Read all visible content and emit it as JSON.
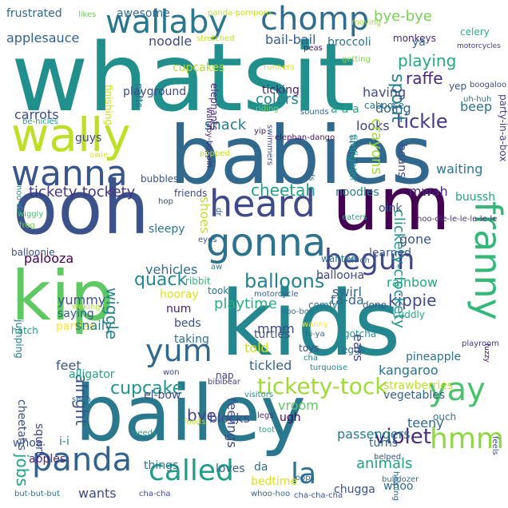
{
  "words": [
    {
      "t": "whatsit",
      "c": "#21908d"
    },
    {
      "t": "babies",
      "c": "#31688e"
    },
    {
      "t": "kids",
      "c": "#24868e"
    },
    {
      "t": "bailey",
      "c": "#2a788e"
    },
    {
      "t": "ooh",
      "c": "#3b528b"
    },
    {
      "t": "kip",
      "c": "#5ec962"
    },
    {
      "t": "um",
      "c": "#440154"
    },
    {
      "t": "wally",
      "c": "#bddf26"
    },
    {
      "t": "wanna",
      "c": "#39568c"
    },
    {
      "t": "heard",
      "c": "#3e4a89"
    },
    {
      "t": "gonna",
      "c": "#2c728e"
    },
    {
      "t": "wallaby",
      "c": "#2a788e"
    },
    {
      "t": "chomp",
      "c": "#2f6c8e"
    },
    {
      "t": "franny",
      "c": "#35b779"
    },
    {
      "t": "yay",
      "c": "#4ac16d"
    },
    {
      "t": "hmm",
      "c": "#90d743"
    },
    {
      "t": "begun",
      "c": "#3e4989"
    },
    {
      "t": "yum",
      "c": "#31688e"
    },
    {
      "t": "panda",
      "c": "#33638d"
    },
    {
      "t": "called",
      "c": "#1f9e89"
    },
    {
      "t": "la",
      "c": "#2c728e"
    },
    {
      "t": "tickety-tock",
      "c": "#a0da39"
    },
    {
      "t": "violet",
      "c": "#472d7b"
    },
    {
      "t": "cupcake",
      "c": "#1f958b"
    },
    {
      "t": "tickle",
      "c": "#443983"
    },
    {
      "t": "balloons",
      "c": "#26828e"
    },
    {
      "t": "cheetah",
      "c": "#1fa187"
    },
    {
      "t": "quack",
      "c": "#23898e"
    },
    {
      "t": "kippie",
      "c": "#3e4a89"
    },
    {
      "t": "playing",
      "c": "#22a884"
    },
    {
      "t": "spout",
      "c": "#277f8e"
    },
    {
      "t": "wiggle",
      "c": "#24868e"
    },
    {
      "t": "clickety-clockety",
      "c": "#21918c"
    },
    {
      "t": "snack",
      "c": "#2a788e"
    },
    {
      "t": "alright",
      "c": "#3b528b"
    },
    {
      "t": "bye",
      "c": "#414487"
    },
    {
      "t": "tickety-tockety",
      "c": "#453781"
    },
    {
      "t": "jobs",
      "c": "#20a386"
    },
    {
      "t": "animals",
      "c": "#1fa187"
    },
    {
      "t": "yummy",
      "c": "#3a548c"
    },
    {
      "t": "colors",
      "c": "#25858e"
    },
    {
      "t": "raffe",
      "c": "#482878"
    },
    {
      "t": "playtime",
      "c": "#29af7f"
    },
    {
      "t": "mmm",
      "c": "#3e4989"
    },
    {
      "t": "frustrated",
      "c": "#31688e"
    },
    {
      "t": "likes",
      "c": "#6ece58"
    },
    {
      "t": "awesome",
      "c": "#31688e"
    },
    {
      "t": "bye-bye",
      "c": "#7ad151"
    },
    {
      "t": "panda-pompom",
      "c": "#bddf26"
    },
    {
      "t": "moving",
      "c": "#9fda3a"
    },
    {
      "t": "monkeys",
      "c": "#482576"
    },
    {
      "t": "celery",
      "c": "#29af7f"
    },
    {
      "t": "motorcycles",
      "c": "#46337e"
    },
    {
      "t": "applesauce",
      "c": "#33638d"
    },
    {
      "t": "bail-bail",
      "c": "#365c8d"
    },
    {
      "t": "broccoli",
      "c": "#2c728e"
    },
    {
      "t": "ya",
      "c": "#31688e"
    },
    {
      "t": "noodle",
      "c": "#3f4788"
    },
    {
      "t": "stretched",
      "c": "#bddf26"
    },
    {
      "t": "peas",
      "c": "#471365"
    },
    {
      "t": "getting",
      "c": "#84d44b"
    },
    {
      "t": "yep",
      "c": "#3b528b"
    },
    {
      "t": "boogaloo",
      "c": "#3e4989"
    },
    {
      "t": "cupcakes",
      "c": "#b5de2b"
    },
    {
      "t": "runners",
      "c": "#dde318"
    },
    {
      "t": "uh-huh",
      "c": "#2c728e"
    },
    {
      "t": "ticking",
      "c": "#482173"
    },
    {
      "t": "having",
      "c": "#3e4a89"
    },
    {
      "t": "caboose",
      "c": "#2a788e"
    },
    {
      "t": "party-in-a-box",
      "c": "#424086"
    },
    {
      "t": "carrots",
      "c": "#3e4989"
    },
    {
      "t": "riding",
      "c": "#7ad151"
    },
    {
      "t": "a-a-a",
      "c": "#22a884"
    },
    {
      "t": "doing",
      "c": "#33638d"
    },
    {
      "t": "beep",
      "c": "#2d708e"
    },
    {
      "t": "sounds",
      "c": "#31688e"
    },
    {
      "t": "yip",
      "c": "#481b6d"
    },
    {
      "t": "be-hicles",
      "c": "#1f9e89"
    },
    {
      "t": "looks",
      "c": "#414487"
    },
    {
      "t": "crayons",
      "c": "#9fda3a"
    },
    {
      "t": "guys",
      "c": "#3e4a89"
    },
    {
      "t": "elephan-dango",
      "c": "#471365"
    },
    {
      "t": "i-i-i",
      "c": "#46337e"
    },
    {
      "t": "firefighter",
      "c": "#1f958b"
    },
    {
      "t": "owie",
      "c": "#d8e219"
    },
    {
      "t": "beans",
      "c": "#3e4a89"
    },
    {
      "t": "waiting",
      "c": "#2a788e"
    },
    {
      "t": "bubbles",
      "c": "#3b528b"
    },
    {
      "t": "friends",
      "c": "#3e4989"
    },
    {
      "t": "noodles",
      "c": "#287c8e"
    },
    {
      "t": "mwah",
      "c": "#482878"
    },
    {
      "t": "buussh",
      "c": "#1fa187"
    },
    {
      "t": "noo-dle",
      "c": "#21918c"
    },
    {
      "t": "hop",
      "c": "#3e4989"
    },
    {
      "t": "oink",
      "c": "#39568c"
    },
    {
      "t": "wiggly",
      "c": "#4ac16d"
    },
    {
      "t": "frog",
      "c": "#7ad151"
    },
    {
      "t": "sleepy",
      "c": "#2a788e"
    },
    {
      "t": "shoes",
      "c": "#c2df23"
    },
    {
      "t": "dr",
      "c": "#31688e"
    },
    {
      "t": "eaters",
      "c": "#22a884"
    },
    {
      "t": "noo-dle-le-le-le-le-le",
      "c": "#472d7b"
    },
    {
      "t": "eyes",
      "c": "#3b528b"
    },
    {
      "t": "gone",
      "c": "#39568c"
    },
    {
      "t": "balloonie",
      "c": "#3b528b"
    },
    {
      "t": "palooza",
      "c": "#440154"
    },
    {
      "t": "wanted",
      "c": "#2c728e"
    },
    {
      "t": "learned",
      "c": "#39568c"
    },
    {
      "t": "vehicles",
      "c": "#2d708e"
    },
    {
      "t": "ballooна",
      "c": "#3e4989"
    },
    {
      "t": "aw",
      "c": "#2a788e"
    },
    {
      "t": "uh-oh",
      "c": "#31688e"
    },
    {
      "t": "rainbow",
      "c": "#22a884"
    },
    {
      "t": "ribbit",
      "c": "#35b779"
    },
    {
      "t": "swirl",
      "c": "#33638d"
    },
    {
      "t": "saying",
      "c": "#365c8d"
    },
    {
      "t": "hooray",
      "c": "#dde318"
    },
    {
      "t": "ta-da",
      "c": "#31688e"
    },
    {
      "t": "took",
      "c": "#2a788e"
    },
    {
      "t": "motorcycle",
      "c": "#365c8d"
    },
    {
      "t": "jumping",
      "c": "#2a788e"
    },
    {
      "t": "num",
      "c": "#482173"
    },
    {
      "t": "comfy",
      "c": "#2a788e"
    },
    {
      "t": "done",
      "c": "#39568c"
    },
    {
      "t": "parties",
      "c": "#fde725"
    },
    {
      "t": "waking",
      "c": "#b5de2b"
    },
    {
      "t": "boo-boo",
      "c": "#2c728e"
    },
    {
      "t": "cuddly",
      "c": "#22a884"
    },
    {
      "t": "beds",
      "c": "#3b528b"
    },
    {
      "t": "wanny",
      "c": "#fde725"
    },
    {
      "t": "snaily",
      "c": "#2a788e"
    },
    {
      "t": "hi-ya",
      "c": "#33638d"
    },
    {
      "t": "gotcha",
      "c": "#21918c"
    },
    {
      "t": "taking",
      "c": "#2c728e"
    },
    {
      "t": "turtles",
      "c": "#3b528b"
    },
    {
      "t": "hatch",
      "c": "#1f958b"
    },
    {
      "t": "told",
      "c": "#cde11d"
    },
    {
      "t": "toys",
      "c": "#3e4a89"
    },
    {
      "t": "eggs",
      "c": "#31688e"
    },
    {
      "t": "fuzzy",
      "c": "#440154"
    },
    {
      "t": "playroom",
      "c": "#443983"
    },
    {
      "t": "feet",
      "c": "#3b528b"
    },
    {
      "t": "tickled",
      "c": "#33638d"
    },
    {
      "t": "cha",
      "c": "#2a788e"
    },
    {
      "t": "turquoise",
      "c": "#23898e"
    },
    {
      "t": "ears",
      "c": "#3e4a89"
    },
    {
      "t": "pineapple",
      "c": "#2c728e"
    },
    {
      "t": "alligator",
      "c": "#20a386"
    },
    {
      "t": "won",
      "c": "#3e4989"
    },
    {
      "t": "nap",
      "c": "#414487"
    },
    {
      "t": "kangaroo",
      "c": "#2d708e"
    },
    {
      "t": "strawberries",
      "c": "#bddf26"
    },
    {
      "t": "bibibear",
      "c": "#424086"
    },
    {
      "t": "vegetables",
      "c": "#33638d"
    },
    {
      "t": "cheetahs",
      "c": "#3b528b"
    },
    {
      "t": "el-bow",
      "c": "#3e4a89"
    },
    {
      "t": "visitors",
      "c": "#21918c"
    },
    {
      "t": "seen",
      "c": "#2c728e"
    },
    {
      "t": "vroom",
      "c": "#5ec962"
    },
    {
      "t": "feelings",
      "c": "#3e4989"
    },
    {
      "t": "teeny",
      "c": "#31688e"
    },
    {
      "t": "ugh",
      "c": "#440154"
    },
    {
      "t": "ouch",
      "c": "#2c728e"
    },
    {
      "t": "whoa",
      "c": "#3b528b"
    },
    {
      "t": "i-i",
      "c": "#2a788e"
    },
    {
      "t": "squirt",
      "c": "#414487"
    },
    {
      "t": "blocks",
      "c": "#3e4a89"
    },
    {
      "t": "needs",
      "c": "#20a386"
    },
    {
      "t": "foods",
      "c": "#b5de2b"
    },
    {
      "t": "legs",
      "c": "#472d7b"
    },
    {
      "t": "turns",
      "c": "#33638d"
    },
    {
      "t": "helped",
      "c": "#3b528b"
    },
    {
      "t": "apples",
      "c": "#482878"
    },
    {
      "t": "toot",
      "c": "#22a884"
    },
    {
      "t": "passengers",
      "c": "#2a788e"
    },
    {
      "t": "feels",
      "c": "#3e4989"
    },
    {
      "t": "things",
      "c": "#2c728e"
    },
    {
      "t": "loves",
      "c": "#33638d"
    },
    {
      "t": "oops",
      "c": "#31688e"
    },
    {
      "t": "bulldozer",
      "c": "#2d708e"
    },
    {
      "t": "wants",
      "c": "#3e4a89"
    },
    {
      "t": "bedtime",
      "c": "#dde318"
    },
    {
      "t": "da",
      "c": "#31688e"
    },
    {
      "t": "helping",
      "c": "#2c728e"
    },
    {
      "t": "chugga",
      "c": "#3b528b"
    },
    {
      "t": "whoo",
      "c": "#31688e"
    },
    {
      "t": "but-but-but",
      "c": "#2a788e"
    },
    {
      "t": "cha-cha",
      "c": "#3e4989"
    },
    {
      "t": "whoo-hoo",
      "c": "#31688e"
    },
    {
      "t": "cha-cha-cha",
      "c": "#3b528b"
    },
    {
      "t": "elephants",
      "c": "#482878"
    },
    {
      "t": "parts",
      "c": "#2c728e"
    },
    {
      "t": "playground",
      "c": "#3e4a89"
    },
    {
      "t": "finishing",
      "c": "#c2df23"
    },
    {
      "t": "wallaby-boppin",
      "c": "#482878"
    },
    {
      "t": "swimmers",
      "c": "#3e4989"
    },
    {
      "t": "popped",
      "c": "#c2df23"
    },
    {
      "t": "kinds",
      "c": "#31688e"
    }
  ]
}
